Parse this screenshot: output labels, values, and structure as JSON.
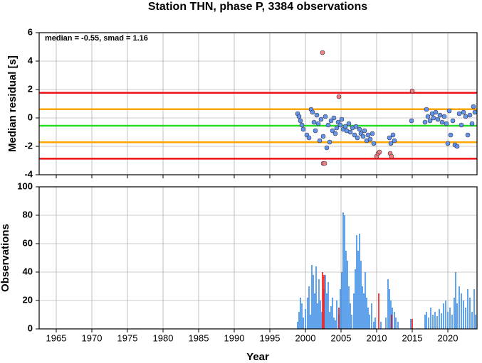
{
  "chart_data": [
    {
      "type": "scatter",
      "title": "Station THN, phase P, 3384 observations",
      "ylabel": "Median residual [s]",
      "annotation": "median = -0.55, smad = 1.16",
      "xlim": [
        1962.6,
        2024.1
      ],
      "ylim": [
        -4,
        6
      ],
      "yticks": [
        -4,
        -2,
        0,
        2,
        4,
        6
      ],
      "grid": true,
      "hlines": [
        {
          "value": 1.77,
          "color": "#ee1111"
        },
        {
          "value": 0.61,
          "color": "#ffa500"
        },
        {
          "value": -0.55,
          "color": "#22dd22"
        },
        {
          "value": -1.71,
          "color": "#ffa500"
        },
        {
          "value": -2.87,
          "color": "#ee1111"
        }
      ],
      "series": [
        {
          "color": "#6495ed",
          "x": [
            1998.9,
            1999.1,
            1999.3,
            1999.5,
            1999.7,
            2000.2,
            2000.5,
            2000.8,
            2001.0,
            2001.2,
            2001.4,
            2001.6,
            2001.8,
            2002.0,
            2002.2,
            2002.5,
            2002.8,
            2003.0,
            2003.2,
            2003.4,
            2003.6,
            2003.8,
            2004.0,
            2004.2,
            2004.4,
            2004.6,
            2004.9,
            2005.1,
            2005.3,
            2005.6,
            2005.8,
            2006.1,
            2006.3,
            2006.6,
            2006.9,
            2007.1,
            2007.3,
            2007.6,
            2007.8,
            2008.1,
            2008.3,
            2008.6,
            2008.8,
            2009.1,
            2009.4,
            2009.6,
            2011.8,
            2012.0,
            2012.3,
            2012.5,
            2014.9,
            2016.8,
            2017.0,
            2017.2,
            2017.5,
            2017.8,
            2018.0,
            2018.3,
            2018.6,
            2018.9,
            2019.2,
            2019.5,
            2019.8,
            2020.0,
            2020.2,
            2020.4,
            2020.7,
            2021.0,
            2021.3,
            2021.6,
            2021.9,
            2022.2,
            2022.5,
            2022.8,
            2023.1,
            2023.4,
            2023.6,
            2023.8
          ],
          "values": [
            0.3,
            0.1,
            -0.2,
            -0.5,
            -0.8,
            -1.2,
            -1.4,
            0.6,
            0.4,
            -0.3,
            -0.9,
            0.2,
            -0.4,
            -1.6,
            -0.1,
            -1.3,
            0.1,
            -2.1,
            -0.5,
            -1.7,
            -0.2,
            -0.9,
            0.0,
            -1.1,
            -0.7,
            -0.3,
            -0.5,
            -0.1,
            -0.8,
            -0.6,
            -0.9,
            -0.4,
            -1.0,
            -0.7,
            -1.2,
            -0.6,
            -1.4,
            -0.8,
            -1.1,
            -1.3,
            -0.9,
            -1.6,
            -1.2,
            -1.5,
            -1.1,
            -1.8,
            -1.4,
            -1.8,
            -1.2,
            -1.6,
            -0.2,
            -0.3,
            0.6,
            0.1,
            -0.2,
            0.3,
            0.0,
            0.4,
            -0.1,
            0.2,
            -0.3,
            0.1,
            -0.4,
            -1.8,
            0.5,
            -1.2,
            -0.2,
            -1.9,
            -2.0,
            0.3,
            -0.5,
            0.4,
            0.1,
            -1.2,
            0.2,
            -0.4,
            0.8,
            0.4
          ]
        },
        {
          "color": "#f08080",
          "x": [
            2002.4,
            2002.5,
            2002.7,
            2004.7,
            2010.0,
            2010.2,
            2010.4,
            2011.9,
            2012.1,
            2015.0
          ],
          "values": [
            4.6,
            -3.2,
            -3.2,
            1.5,
            -2.7,
            -2.5,
            -2.4,
            -2.5,
            -2.7,
            1.9
          ]
        }
      ]
    },
    {
      "type": "bar",
      "ylabel": "Observations",
      "xlabel": "Year",
      "xlim": [
        1962.6,
        2024.1
      ],
      "xticks": [
        1965,
        1970,
        1975,
        1980,
        1985,
        1990,
        1995,
        2000,
        2005,
        2010,
        2015,
        2020
      ],
      "ylim": [
        0,
        100
      ],
      "yticks": [
        0,
        20,
        40,
        60,
        80,
        100
      ],
      "grid": true,
      "series": [
        {
          "color": "#3a8ee6",
          "x": [
            1998.9,
            1999.1,
            1999.3,
            1999.5,
            1999.7,
            2000.0,
            2000.3,
            2000.5,
            2000.7,
            2000.9,
            2001.1,
            2001.3,
            2001.5,
            2001.7,
            2001.9,
            2002.1,
            2002.3,
            2002.6,
            2002.8,
            2003.0,
            2003.2,
            2003.4,
            2003.6,
            2003.8,
            2004.0,
            2004.2,
            2004.4,
            2004.7,
            2004.9,
            2005.1,
            2005.3,
            2005.5,
            2005.7,
            2005.9,
            2006.1,
            2006.3,
            2006.5,
            2006.8,
            2007.0,
            2007.2,
            2007.4,
            2007.6,
            2007.8,
            2008.0,
            2008.2,
            2008.4,
            2008.6,
            2008.8,
            2009.0,
            2009.3,
            2009.6,
            2009.8,
            2010.6,
            2011.3,
            2011.6,
            2011.8,
            2012.0,
            2012.2,
            2012.5,
            2012.7,
            2013.0,
            2014.8,
            2016.8,
            2017.0,
            2017.3,
            2017.6,
            2017.9,
            2018.2,
            2018.5,
            2018.8,
            2019.1,
            2019.4,
            2019.7,
            2020.0,
            2020.3,
            2020.6,
            2020.9,
            2021.1,
            2021.3,
            2021.6,
            2021.9,
            2022.2,
            2022.5,
            2022.8,
            2023.1,
            2023.4,
            2023.7,
            2023.9
          ],
          "values": [
            5,
            12,
            22,
            18,
            8,
            14,
            22,
            30,
            10,
            45,
            38,
            25,
            44,
            18,
            35,
            20,
            12,
            28,
            38,
            25,
            33,
            12,
            16,
            22,
            8,
            6,
            20,
            10,
            28,
            40,
            82,
            80,
            55,
            48,
            30,
            18,
            10,
            25,
            42,
            66,
            55,
            67,
            48,
            30,
            25,
            40,
            22,
            15,
            10,
            18,
            5,
            8,
            5,
            8,
            35,
            28,
            20,
            15,
            12,
            8,
            5,
            7,
            10,
            12,
            8,
            15,
            10,
            12,
            9,
            14,
            11,
            18,
            20,
            12,
            15,
            10,
            22,
            40,
            18,
            30,
            25,
            20,
            15,
            28,
            22,
            12,
            28,
            10
          ]
        },
        {
          "color": "#ee1111",
          "x": [
            2002.4,
            2002.6,
            2004.7,
            2010.3,
            2012.1,
            2015.0
          ],
          "values": [
            40,
            38,
            15,
            25,
            10,
            7
          ]
        }
      ]
    }
  ]
}
